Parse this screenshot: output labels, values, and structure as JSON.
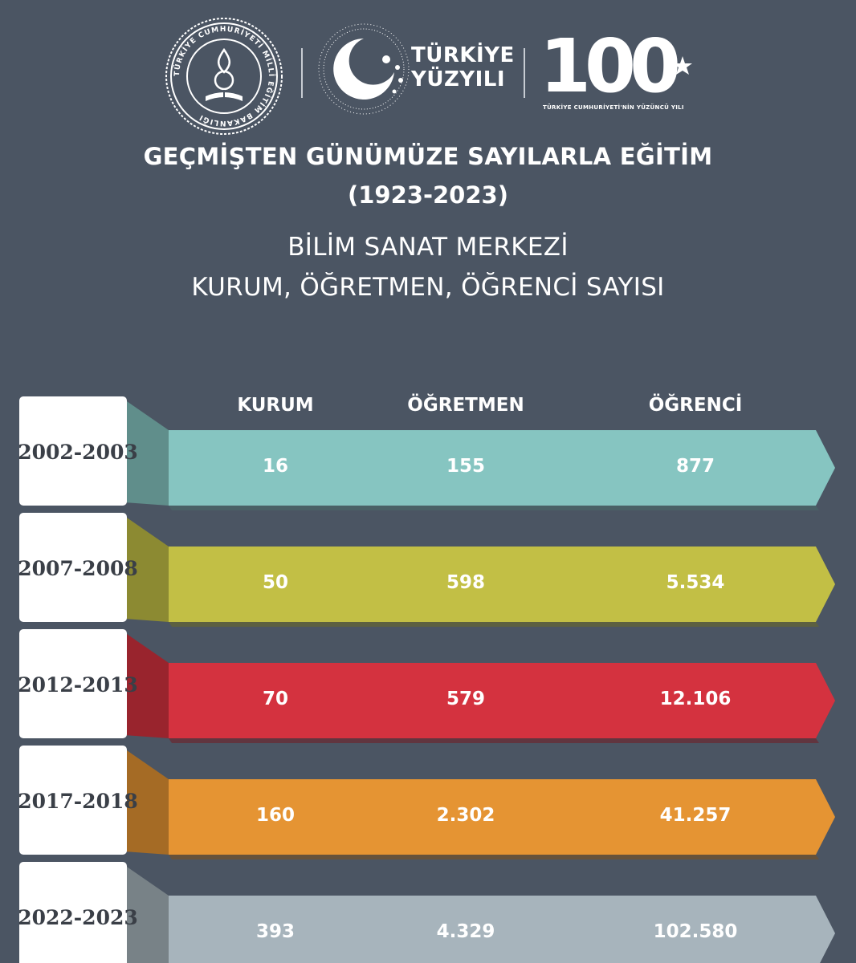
{
  "logos": {
    "seal_text": "TÜRKİYE CUMHURİYETİ MİLLÎ EĞİTİM BAKANLIĞI",
    "turkiye_line1": "TÜRKİYE",
    "turkiye_line2": "YÜZYILI",
    "centennial_number": "100",
    "centennial_tagline": "TÜRKİYE CUMHURİYETİ'NİN YÜZÜNCÜ YILI"
  },
  "header": {
    "title": "GEÇMİŞTEN GÜNÜMÜZE SAYILARLA EĞİTİM",
    "years": "(1923-2023)",
    "subtitle_line1": "BİLİM SANAT MERKEZİ",
    "subtitle_line2": "KURUM, ÖĞRETMEN, ÖĞRENCİ SAYISI"
  },
  "colors": {
    "background": "#4b5563",
    "rows": [
      "#86c5c1",
      "#c2bf45",
      "#d4323f",
      "#e59433",
      "#a7b4bc"
    ]
  },
  "chart_data": {
    "type": "table",
    "columns": [
      "KURUM",
      "ÖĞRETMEN",
      "ÖĞRENCİ"
    ],
    "rows": [
      {
        "period": "2002-2003",
        "values": [
          "16",
          "155",
          "877"
        ]
      },
      {
        "period": "2007-2008",
        "values": [
          "50",
          "598",
          "5.534"
        ]
      },
      {
        "period": "2012-2013",
        "values": [
          "70",
          "579",
          "12.106"
        ]
      },
      {
        "period": "2017-2018",
        "values": [
          "160",
          "2.302",
          "41.257"
        ]
      },
      {
        "period": "2022-2023",
        "values": [
          "393",
          "4.329",
          "102.580"
        ]
      }
    ]
  }
}
